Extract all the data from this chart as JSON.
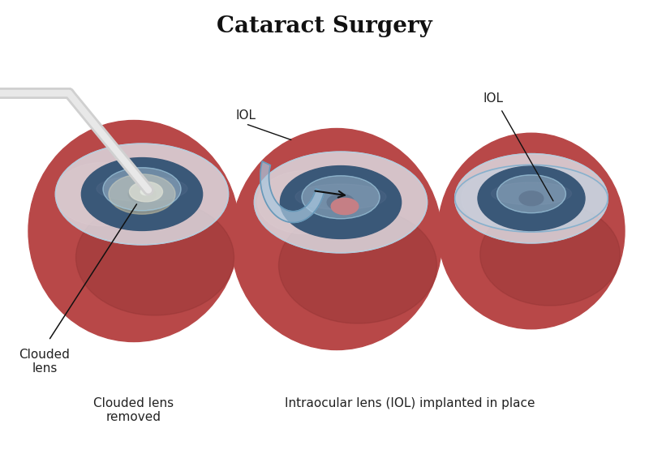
{
  "title": "Cataract Surgery",
  "title_fontsize": 20,
  "title_fontweight": "bold",
  "bg_color": "#ffffff",
  "eye_color_dark": "#8c3030",
  "eye_color_mid": "#b04040",
  "eye_color_main": "#b84848",
  "eye_color_light": "#c86060",
  "sclera_color": "#d8e8f0",
  "sclera_edge": "#a0c0d8",
  "iris_dark": "#2a4060",
  "iris_mid": "#3a5878",
  "iris_light": "#506888",
  "cornea_color": "#c8dce8",
  "cornea_alpha": 0.65,
  "tool_outer": "#d0d0d0",
  "tool_inner": "#e8e8e8",
  "tool_edge": "#a0a0a0",
  "iol_fill": "#a8c8e0",
  "iol_alpha": 0.7,
  "iol_edge": "#6898b8",
  "label1": "Clouded lens\nremoved",
  "label2": "Intraocular lens (IOL) implanted in place",
  "ann1": "Clouded\nlens",
  "ann2": "IOL",
  "ann3": "IOL",
  "text_color": "#222222",
  "label_fontsize": 11,
  "ann_fontsize": 11
}
